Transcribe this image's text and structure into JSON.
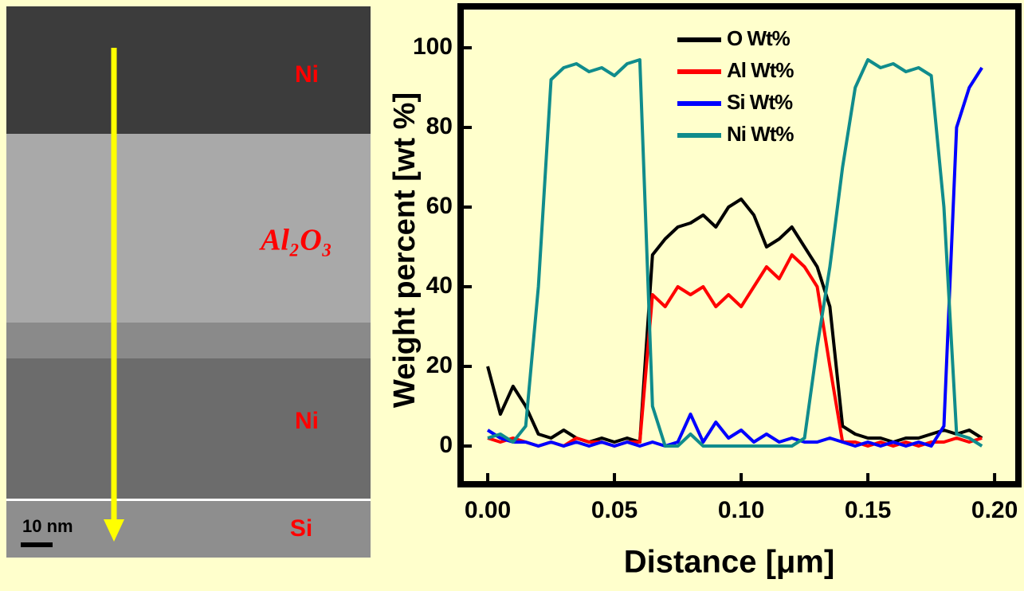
{
  "image": {
    "layers": [
      "Ni",
      "Al₂O₃",
      "Ni",
      "Si"
    ],
    "scale_bar": "10 nm"
  },
  "chart_data": {
    "type": "line",
    "x_label": "Distance [μm]",
    "y_label": "Weight percent [wt %]",
    "x": [
      0,
      0.005,
      0.01,
      0.015,
      0.02,
      0.025,
      0.03,
      0.035,
      0.04,
      0.045,
      0.05,
      0.055,
      0.06,
      0.065,
      0.07,
      0.075,
      0.08,
      0.085,
      0.09,
      0.095,
      0.1,
      0.105,
      0.11,
      0.115,
      0.12,
      0.125,
      0.13,
      0.135,
      0.14,
      0.145,
      0.15,
      0.155,
      0.16,
      0.165,
      0.17,
      0.175,
      0.18,
      0.185,
      0.19,
      0.195
    ],
    "series": [
      {
        "name": "O Wt%",
        "color": "#000000",
        "values": [
          20,
          8,
          15,
          10,
          3,
          2,
          4,
          2,
          1,
          2,
          1,
          2,
          1,
          48,
          52,
          55,
          56,
          58,
          55,
          60,
          62,
          58,
          50,
          52,
          55,
          50,
          45,
          35,
          5,
          3,
          2,
          2,
          1,
          2,
          2,
          3,
          4,
          3,
          4,
          2
        ]
      },
      {
        "name": "Al Wt%",
        "color": "#ff0000",
        "values": [
          2,
          1,
          2,
          1,
          0,
          1,
          0,
          2,
          1,
          1,
          0,
          1,
          1,
          38,
          35,
          40,
          38,
          40,
          35,
          38,
          35,
          40,
          45,
          42,
          48,
          45,
          40,
          20,
          1,
          1,
          0,
          1,
          0,
          1,
          0,
          1,
          1,
          2,
          1,
          2
        ]
      },
      {
        "name": "Si Wt%",
        "color": "#0000ff",
        "values": [
          4,
          2,
          1,
          1,
          0,
          1,
          0,
          1,
          0,
          1,
          0,
          1,
          0,
          1,
          0,
          1,
          8,
          1,
          6,
          2,
          4,
          1,
          3,
          1,
          2,
          1,
          1,
          2,
          1,
          0,
          1,
          0,
          1,
          0,
          1,
          0,
          5,
          80,
          90,
          95
        ]
      },
      {
        "name": "Ni Wt%",
        "color": "#108c8c",
        "values": [
          2,
          3,
          1,
          5,
          40,
          92,
          95,
          96,
          94,
          95,
          93,
          96,
          97,
          10,
          0,
          0,
          3,
          0,
          0,
          0,
          0,
          0,
          0,
          0,
          0,
          2,
          25,
          45,
          70,
          90,
          97,
          95,
          96,
          94,
          95,
          93,
          60,
          3,
          2,
          0
        ]
      }
    ],
    "xlim": [
      -0.0107,
      0.2094
    ],
    "ylim": [
      -9.6,
      110.4
    ],
    "xticks": [
      {
        "value": 0,
        "label": "0.00"
      },
      {
        "value": 0.05,
        "label": "0.05"
      },
      {
        "value": 0.1,
        "label": "0.10"
      },
      {
        "value": 0.15,
        "label": "0.15"
      },
      {
        "value": 0.2,
        "label": "0.20"
      }
    ],
    "yticks": [
      0,
      20,
      40,
      60,
      80,
      100
    ]
  }
}
